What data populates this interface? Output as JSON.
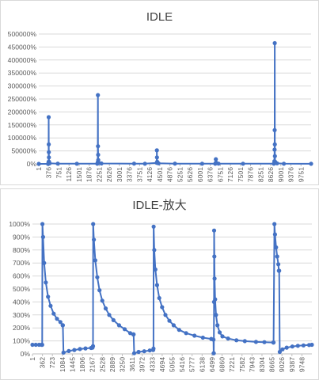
{
  "chart_data": [
    {
      "type": "line",
      "title": "IDLE",
      "ylim": [
        0,
        500000
      ],
      "y_ticks": [
        "0%",
        "50000%",
        "100000%",
        "150000%",
        "200000%",
        "250000%",
        "300000%",
        "350000%",
        "400000%",
        "450000%",
        "500000%"
      ],
      "x_ticks": [
        "1",
        "376",
        "751",
        "1126",
        "1501",
        "1876",
        "2251",
        "2626",
        "3001",
        "3376",
        "3751",
        "4126",
        "4501",
        "4876",
        "5251",
        "5626",
        "6001",
        "6376",
        "6751",
        "7126",
        "7501",
        "7876",
        "8251",
        "8626",
        "9001",
        "9376",
        "9751"
      ],
      "xlim": [
        1,
        10000
      ],
      "grid": true,
      "color": "#4472c4",
      "series": [
        {
          "points": [
            [
              1,
              0
            ],
            [
              340,
              0
            ],
            [
              362,
              8000
            ],
            [
              365,
              180000
            ],
            [
              368,
              75000
            ],
            [
              371,
              45000
            ],
            [
              374,
              25000
            ],
            [
              380,
              8000
            ],
            [
              400,
              2000
            ],
            [
              700,
              800
            ],
            [
              1400,
              500
            ],
            [
              2150,
              500
            ],
            [
              2167,
              6000
            ],
            [
              2172,
              265000
            ],
            [
              2176,
              68000
            ],
            [
              2180,
              35000
            ],
            [
              2185,
              15000
            ],
            [
              2200,
              4000
            ],
            [
              2300,
              1500
            ],
            [
              3500,
              800
            ],
            [
              3900,
              600
            ],
            [
              4333,
              4000
            ],
            [
              4337,
              52000
            ],
            [
              4341,
              25000
            ],
            [
              4350,
              8000
            ],
            [
              4400,
              2000
            ],
            [
              5000,
              800
            ],
            [
              6000,
              500
            ],
            [
              6480,
              500
            ],
            [
              6499,
              3000
            ],
            [
              6503,
              18000
            ],
            [
              6510,
              5000
            ],
            [
              6600,
              1000
            ],
            [
              7500,
              600
            ],
            [
              8630,
              600
            ],
            [
              8650,
              10000
            ],
            [
              8660,
              55000
            ],
            [
              8663,
              130000
            ],
            [
              8665,
              465000
            ],
            [
              8668,
              75000
            ],
            [
              8672,
              30000
            ],
            [
              8680,
              8000
            ],
            [
              8750,
              2000
            ],
            [
              9000,
              500
            ],
            [
              10000,
              200
            ]
          ]
        }
      ]
    },
    {
      "type": "line",
      "title": "IDLE-放大",
      "ylim": [
        0,
        1000
      ],
      "y_ticks": [
        "0%",
        "100%",
        "200%",
        "300%",
        "400%",
        "500%",
        "600%",
        "700%",
        "800%",
        "900%",
        "1000%"
      ],
      "x_ticks": [
        "1",
        "362",
        "723",
        "1084",
        "1445",
        "1806",
        "2167",
        "2528",
        "2889",
        "3250",
        "3611",
        "3972",
        "4333",
        "4694",
        "5055",
        "5416",
        "5777",
        "6138",
        "6499",
        "6860",
        "7221",
        "7582",
        "7943",
        "8304",
        "8665",
        "9026",
        "9387",
        "9748"
      ],
      "xlim": [
        1,
        10000
      ],
      "grid": true,
      "color": "#4472c4",
      "series": [
        {
          "points": [
            [
              1,
              70
            ],
            [
              120,
              70
            ],
            [
              240,
              70
            ],
            [
              330,
              70
            ],
            [
              340,
              70
            ],
            [
              350,
              70
            ],
            [
              358,
              1000
            ],
            [
              380,
              900
            ],
            [
              420,
              700
            ],
            [
              480,
              550
            ],
            [
              560,
              440
            ],
            [
              650,
              370
            ],
            [
              760,
              310
            ],
            [
              880,
              270
            ],
            [
              1000,
              245
            ],
            [
              1084,
              220
            ],
            [
              1090,
              220
            ],
            [
              1110,
              10
            ],
            [
              1300,
              22
            ],
            [
              1500,
              30
            ],
            [
              1700,
              37
            ],
            [
              1900,
              42
            ],
            [
              2100,
              46
            ],
            [
              2150,
              48
            ],
            [
              2167,
              60
            ],
            [
              2175,
              1000
            ],
            [
              2200,
              880
            ],
            [
              2250,
              720
            ],
            [
              2320,
              590
            ],
            [
              2400,
              490
            ],
            [
              2500,
              410
            ],
            [
              2620,
              350
            ],
            [
              2750,
              300
            ],
            [
              2900,
              260
            ],
            [
              3100,
              220
            ],
            [
              3300,
              190
            ],
            [
              3500,
              160
            ],
            [
              3611,
              150
            ],
            [
              3620,
              150
            ],
            [
              3640,
              5
            ],
            [
              3800,
              15
            ],
            [
              4000,
              20
            ],
            [
              4200,
              26
            ],
            [
              4320,
              30
            ],
            [
              4333,
              40
            ],
            [
              4338,
              980
            ],
            [
              4360,
              800
            ],
            [
              4400,
              650
            ],
            [
              4460,
              530
            ],
            [
              4540,
              430
            ],
            [
              4640,
              360
            ],
            [
              4760,
              300
            ],
            [
              4900,
              255
            ],
            [
              5055,
              220
            ],
            [
              5250,
              185
            ],
            [
              5500,
              160
            ],
            [
              5800,
              140
            ],
            [
              6100,
              125
            ],
            [
              6400,
              115
            ],
            [
              6480,
              110
            ],
            [
              6485,
              5
            ],
            [
              6490,
              5
            ],
            [
              6499,
              400
            ],
            [
              6502,
              950
            ],
            [
              6510,
              750
            ],
            [
              6520,
              580
            ],
            [
              6540,
              420
            ],
            [
              6570,
              300
            ],
            [
              6620,
              220
            ],
            [
              6700,
              165
            ],
            [
              6800,
              135
            ],
            [
              7000,
              118
            ],
            [
              7300,
              105
            ],
            [
              7600,
              98
            ],
            [
              8000,
              92
            ],
            [
              8300,
              90
            ],
            [
              8620,
              88
            ],
            [
              8630,
              88
            ],
            [
              8660,
              1000
            ],
            [
              8680,
              920
            ],
            [
              8720,
              820
            ],
            [
              8760,
              750
            ],
            [
              8800,
              690
            ],
            [
              8820,
              640
            ],
            [
              8830,
              640
            ],
            [
              8850,
              15
            ],
            [
              8950,
              35
            ],
            [
              9100,
              48
            ],
            [
              9300,
              57
            ],
            [
              9500,
              62
            ],
            [
              9700,
              65
            ],
            [
              9900,
              68
            ],
            [
              10000,
              70
            ]
          ]
        }
      ]
    }
  ]
}
